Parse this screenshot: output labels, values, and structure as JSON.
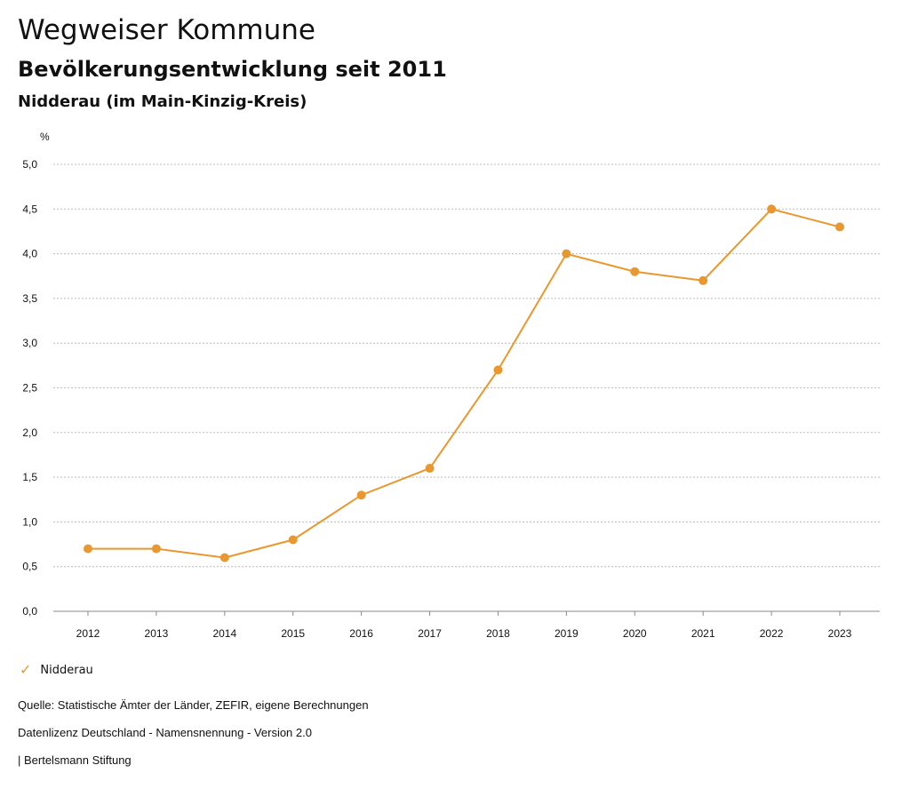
{
  "header": {
    "title": "Wegweiser Kommune",
    "subtitle": "Bevölkerungsentwicklung seit 2011",
    "region": "Nidderau (im Main-Kinzig-Kreis)"
  },
  "chart_data": {
    "type": "line",
    "ylabel": "%",
    "ylim": [
      0,
      5
    ],
    "yticks": [
      "0,0",
      "0,5",
      "1,0",
      "1,5",
      "2,0",
      "2,5",
      "3,0",
      "3,5",
      "4,0",
      "4,5",
      "5,0"
    ],
    "x": [
      "2012",
      "2013",
      "2014",
      "2015",
      "2016",
      "2017",
      "2018",
      "2019",
      "2020",
      "2021",
      "2022",
      "2023"
    ],
    "series": [
      {
        "name": "Nidderau",
        "color": "#e8982e",
        "values": [
          0.7,
          0.7,
          0.6,
          0.8,
          1.3,
          1.6,
          2.7,
          4.0,
          3.8,
          3.7,
          4.5,
          4.3
        ]
      }
    ],
    "grid": true,
    "legend": "bottom-left"
  },
  "legend": {
    "label": "Nidderau",
    "icon": "check-icon"
  },
  "footer": {
    "source": "Quelle: Statistische Ämter der Länder, ZEFIR, eigene Berechnungen",
    "license": "Datenlizenz Deutschland - Namensnennung - Version 2.0",
    "brand": "| Bertelsmann Stiftung"
  }
}
